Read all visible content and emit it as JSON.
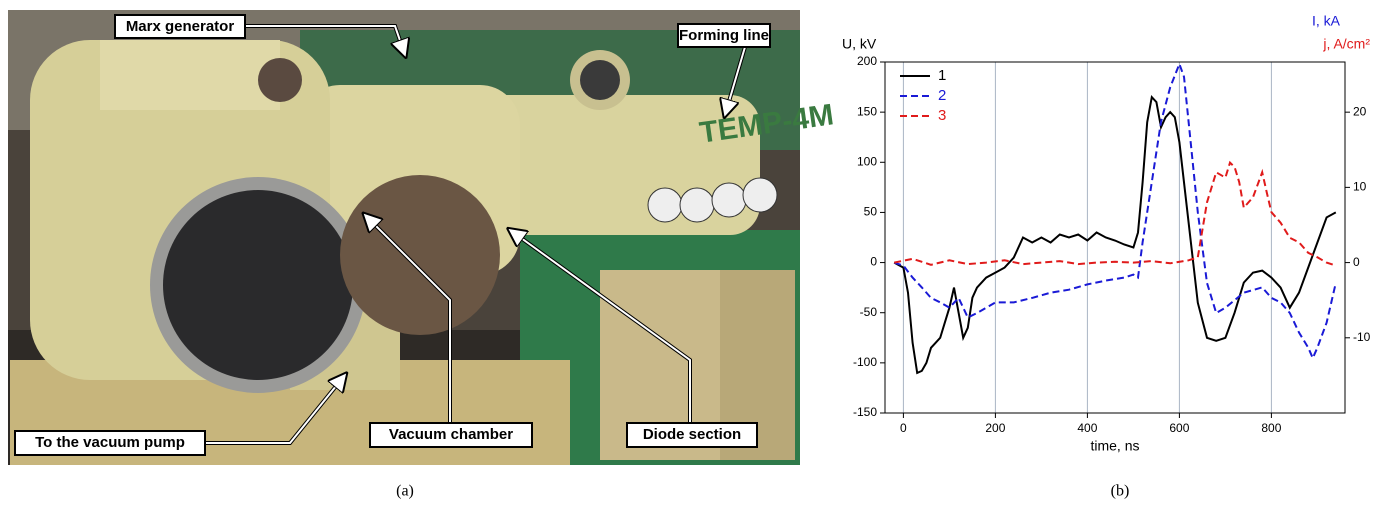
{
  "panel_a": {
    "labels": [
      "Marx generator",
      "Forming line",
      "To the vacuum pump",
      "Vacuum chamber",
      "Diode section"
    ],
    "caption": "(a)"
  },
  "panel_b": {
    "caption": "(b)"
  },
  "chart_data": {
    "type": "line",
    "x_label": "time, ns",
    "y_label": "U, kV",
    "y2_label": [
      "I, kA",
      "j, A/cm²"
    ],
    "xlim": [
      -40,
      960
    ],
    "xticks": [
      0,
      200,
      400,
      600,
      800
    ],
    "ylim": [
      -150,
      200
    ],
    "yticks": [
      -150,
      -100,
      -50,
      0,
      50,
      100,
      150,
      200
    ],
    "y2lim": [
      -20,
      26.67
    ],
    "y2ticks": [
      -10,
      0,
      10,
      20
    ],
    "grid": "x",
    "legend": "upper left",
    "series": [
      {
        "name": "1",
        "color": "#000000",
        "line_style": "solid",
        "x": [
          -20,
          0,
          10,
          20,
          30,
          40,
          50,
          60,
          70,
          80,
          90,
          100,
          110,
          120,
          130,
          140,
          150,
          160,
          170,
          180,
          200,
          220,
          240,
          260,
          280,
          300,
          320,
          340,
          360,
          380,
          400,
          420,
          440,
          460,
          480,
          500,
          510,
          520,
          530,
          540,
          550,
          560,
          570,
          580,
          590,
          600,
          620,
          640,
          660,
          680,
          700,
          720,
          740,
          760,
          780,
          800,
          820,
          840,
          860,
          880,
          900,
          920,
          940
        ],
        "values": [
          0,
          -5,
          -30,
          -80,
          -110,
          -108,
          -100,
          -85,
          -80,
          -75,
          -60,
          -45,
          -25,
          -50,
          -75,
          -65,
          -35,
          -25,
          -20,
          -15,
          -10,
          -5,
          5,
          25,
          20,
          25,
          20,
          28,
          25,
          28,
          22,
          30,
          25,
          22,
          18,
          15,
          30,
          80,
          140,
          165,
          160,
          135,
          145,
          150,
          145,
          120,
          40,
          -40,
          -75,
          -78,
          -75,
          -50,
          -20,
          -10,
          -8,
          -15,
          -25,
          -45,
          -30,
          -5,
          20,
          45,
          50
        ]
      },
      {
        "name": "2",
        "color": "#1a1ad6",
        "line_style": "dashed",
        "axis": "y2",
        "x": [
          -20,
          0,
          20,
          40,
          60,
          80,
          100,
          120,
          140,
          160,
          180,
          200,
          240,
          280,
          320,
          360,
          400,
          440,
          480,
          500,
          510,
          520,
          540,
          560,
          580,
          600,
          610,
          620,
          640,
          660,
          680,
          700,
          740,
          780,
          800,
          820,
          840,
          860,
          880,
          890,
          900,
          920,
          940
        ],
        "values": [
          0,
          -0.4,
          -2,
          -3.3,
          -4.7,
          -5.3,
          -6,
          -4.7,
          -7.3,
          -6.7,
          -6,
          -5.3,
          -5.3,
          -4.7,
          -4,
          -3.6,
          -2.9,
          -2.4,
          -2,
          -1.6,
          -2,
          2.7,
          10.7,
          18.7,
          23.3,
          26.4,
          24.7,
          18.7,
          6.7,
          -2.7,
          -6.7,
          -6,
          -4,
          -3.3,
          -4.7,
          -5.3,
          -6.7,
          -9.3,
          -11.3,
          -12.7,
          -11.3,
          -8,
          -2.7
        ]
      },
      {
        "name": "3",
        "color": "#e01b1b",
        "line_style": "dashed",
        "axis": "y2",
        "x": [
          -20,
          20,
          60,
          100,
          140,
          180,
          220,
          260,
          300,
          340,
          380,
          420,
          460,
          500,
          540,
          580,
          620,
          640,
          660,
          680,
          700,
          710,
          720,
          730,
          740,
          760,
          780,
          790,
          800,
          820,
          840,
          860,
          880,
          900,
          920,
          940
        ],
        "values": [
          0,
          0.5,
          -0.3,
          0.3,
          -0.2,
          0,
          0.3,
          -0.2,
          0,
          0.2,
          -0.2,
          0,
          0.1,
          0,
          0.2,
          -0.1,
          0.3,
          0.7,
          8,
          12,
          11.3,
          13.3,
          12.7,
          10.7,
          7.3,
          8.7,
          12,
          9.3,
          6.7,
          5.3,
          3.3,
          2.7,
          1.3,
          0.7,
          0,
          -0.4
        ]
      }
    ]
  }
}
